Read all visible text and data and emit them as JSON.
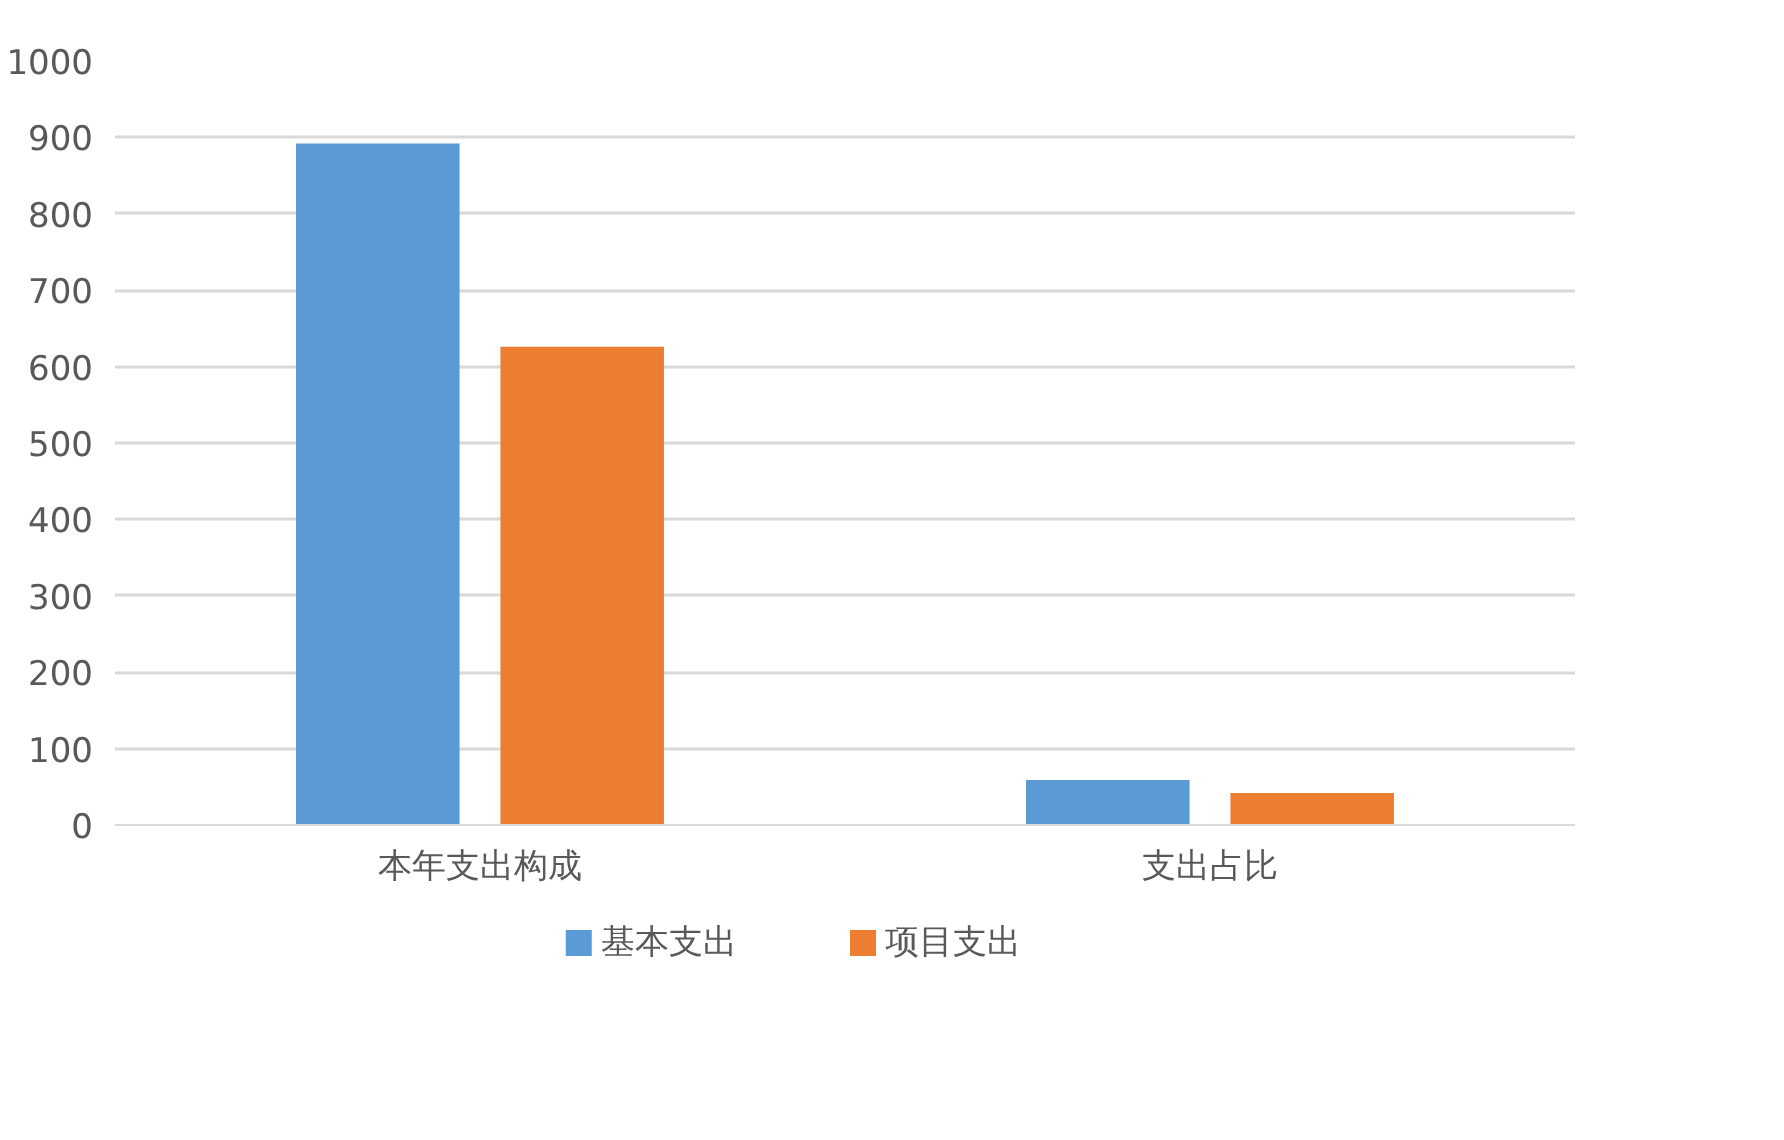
{
  "chart_data": {
    "type": "bar",
    "categories": [
      "本年支出构成",
      "支出占比"
    ],
    "series": [
      {
        "name": "基本支出",
        "color": "#5b9bd5",
        "values": [
          892,
          59
        ]
      },
      {
        "name": "项目支出",
        "color": "#ed7d31",
        "values": [
          626,
          42
        ]
      }
    ],
    "ylim": [
      0,
      1000
    ],
    "yticks": [
      0,
      100,
      200,
      300,
      400,
      500,
      600,
      700,
      800,
      900,
      1000
    ],
    "grid": "y",
    "legend": "bottom"
  }
}
